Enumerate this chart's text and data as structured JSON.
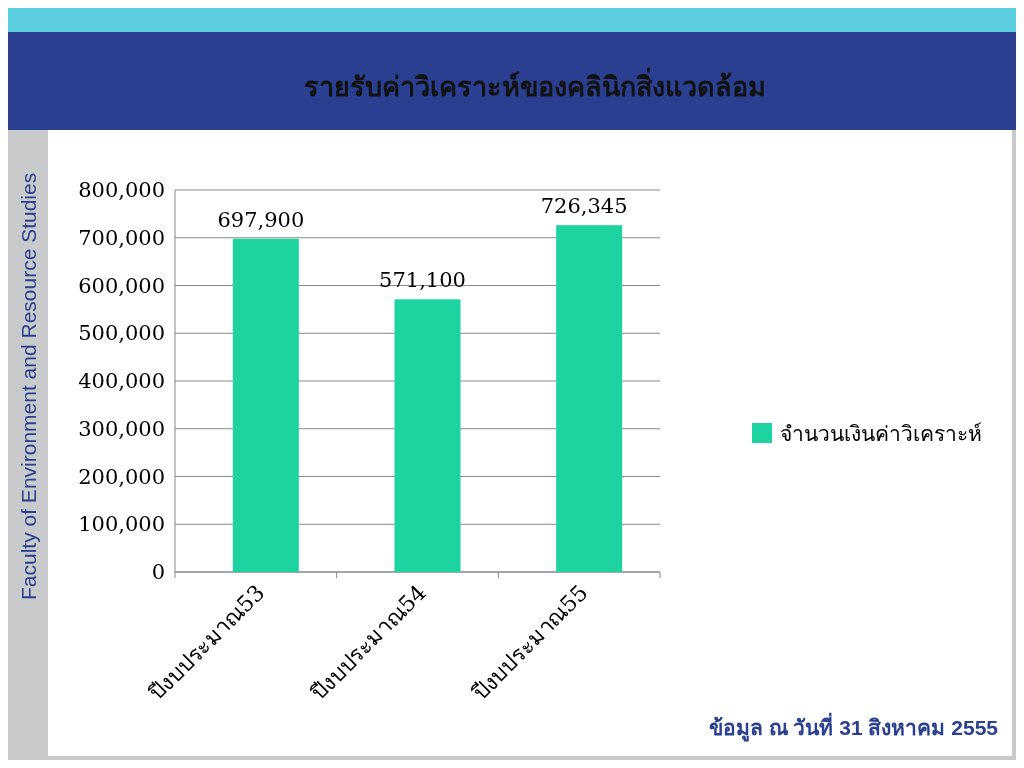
{
  "chart_data": {
    "type": "bar",
    "title": "รายรับค่าวิเคราะห์ของคลินิกสิ่งแวดล้อม",
    "categories": [
      "ปีงบประมาณ53",
      "ปีงบประมาณ54",
      "ปีงบประมาณ55"
    ],
    "series": [
      {
        "name": "จำนวนเงินค่าวิเคราะห์",
        "color": "#1dd3a0",
        "values": [
          697900,
          571100,
          726345
        ],
        "value_labels": [
          "697,900",
          "571,100",
          "726,345"
        ]
      }
    ],
    "ylim": [
      0,
      800000
    ],
    "yticks": [
      {
        "value": 0,
        "label": "0"
      },
      {
        "value": 100000,
        "label": "100,000"
      },
      {
        "value": 200000,
        "label": "200,000"
      },
      {
        "value": 300000,
        "label": "300,000"
      },
      {
        "value": 400000,
        "label": "400,000"
      },
      {
        "value": 500000,
        "label": "500,000"
      },
      {
        "value": 600000,
        "label": "600,000"
      },
      {
        "value": 700000,
        "label": "700,000"
      },
      {
        "value": 800000,
        "label": "800,000"
      }
    ],
    "grid": "y",
    "legend": "right",
    "annotations": [
      "Faculty of Environment and Resource Studies",
      "ข้อมูล ณ วันที่ 31 สิงหาคม 2555"
    ]
  }
}
